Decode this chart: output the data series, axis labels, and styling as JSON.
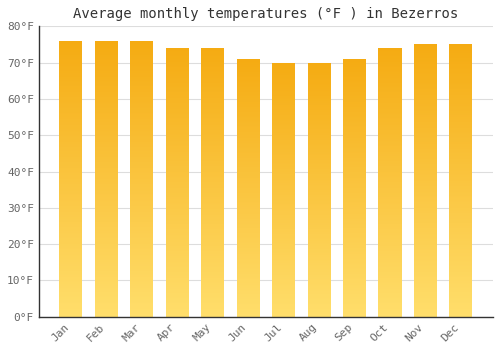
{
  "title": "Average monthly temperatures (°F ) in Bezerros",
  "months": [
    "Jan",
    "Feb",
    "Mar",
    "Apr",
    "May",
    "Jun",
    "Jul",
    "Aug",
    "Sep",
    "Oct",
    "Nov",
    "Dec"
  ],
  "values": [
    76,
    76,
    76,
    74,
    74,
    71,
    70,
    70,
    71,
    74,
    75,
    75
  ],
  "ylim": [
    0,
    80
  ],
  "yticks": [
    0,
    10,
    20,
    30,
    40,
    50,
    60,
    70,
    80
  ],
  "bar_color_top": "#F5A800",
  "bar_color_bottom": "#FFD966",
  "background_color": "#FFFFFF",
  "plot_bg_color": "#FFFFFF",
  "grid_color": "#DDDDDD",
  "title_fontsize": 10,
  "tick_fontsize": 8,
  "bar_width": 0.65
}
